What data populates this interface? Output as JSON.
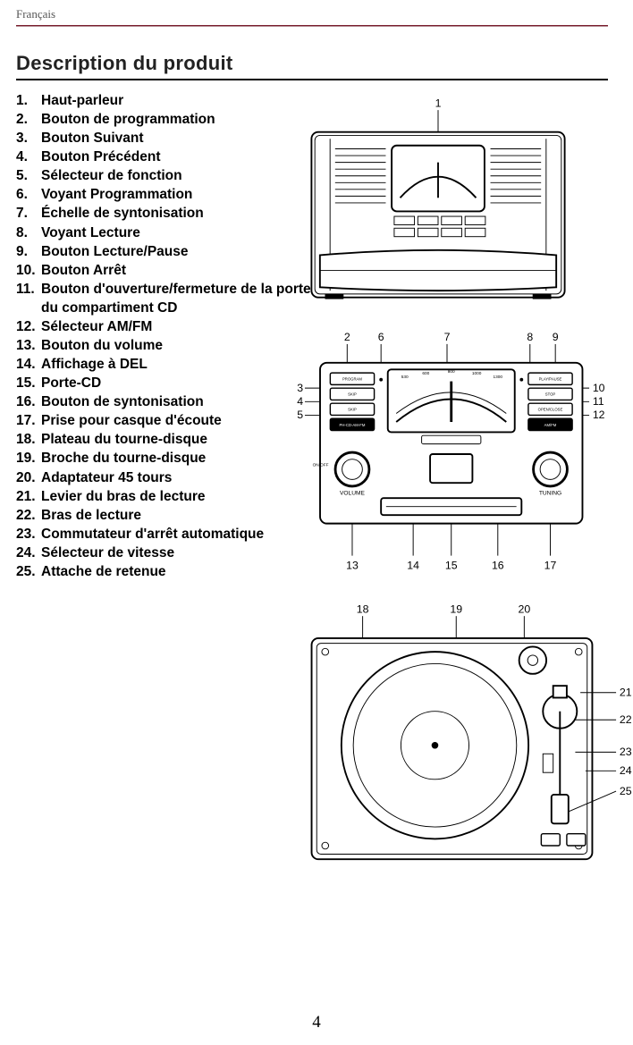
{
  "header": {
    "lang": "Français"
  },
  "title": "Description du produit",
  "parts": [
    "Haut-parleur",
    "Bouton de programmation",
    "Bouton Suivant",
    "Bouton Précédent",
    "Sélecteur de fonction",
    "Voyant Programmation",
    "Échelle de syntonisation",
    "Voyant Lecture",
    "Bouton Lecture/Pause",
    "Bouton Arrêt",
    "Bouton d'ouverture/fermeture de la porte du compartiment CD",
    "Sélecteur AM/FM",
    "Bouton du volume",
    "Affichage à DEL",
    "Porte-CD",
    "Bouton de syntonisation",
    "Prise pour casque d'écoute",
    "Plateau du tourne-disque",
    "Broche du tourne-disque",
    "Adaptateur 45 tours",
    "Levier du bras de lecture",
    "Bras de lecture",
    "Commutateur d'arrêt automatique",
    "Sélecteur de vitesse",
    "Attache de retenue"
  ],
  "figures": {
    "fig1": {
      "callouts": [
        "1"
      ]
    },
    "fig2": {
      "callouts_top": [
        "2",
        "6",
        "7",
        "8",
        "9"
      ],
      "callouts_left": [
        "3",
        "4",
        "5"
      ],
      "callouts_right": [
        "10",
        "11",
        "12"
      ],
      "callouts_bottom": [
        "13",
        "14",
        "15",
        "16",
        "17"
      ],
      "radio_dial": [
        "530",
        "600",
        "800",
        "1000",
        "1300",
        "1600"
      ],
      "radio_dial2": [
        "88",
        "92",
        "96",
        "100",
        "104",
        "108"
      ],
      "knob_left": "VOLUME",
      "knob_right": "TUNING",
      "knob_left_sub": "ON/OFF",
      "buttons_left": [
        "PROGRAM",
        "SKIP",
        "SKIP",
        "PH-CD-AM-FM"
      ],
      "buttons_right": [
        "PLAY/PAUSE",
        "STOP",
        "OPEN/CLOSE",
        "AM/FM"
      ]
    },
    "fig3": {
      "callouts_top": [
        "18",
        "19",
        "20"
      ],
      "callouts_right": [
        "21",
        "22",
        "23",
        "24",
        "25"
      ]
    }
  },
  "page_number": "4",
  "colors": {
    "rule": "#7a1e2e",
    "text": "#000000",
    "muted": "#555555"
  },
  "typography": {
    "lang_fontsize": 13,
    "title_fontsize": 22,
    "list_fontsize": 15.5,
    "callout_fontsize": 13
  }
}
